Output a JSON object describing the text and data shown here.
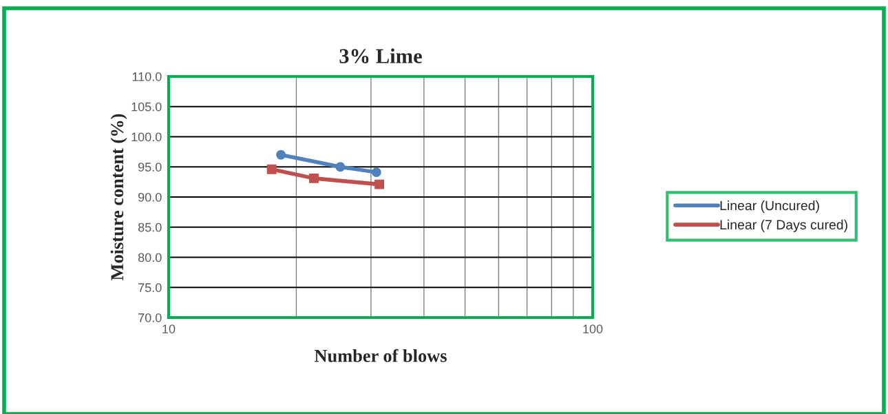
{
  "chart_data": {
    "type": "line",
    "title": "3% Lime",
    "xlabel": "Number of blows",
    "ylabel": "Moisture content (%)",
    "series": [
      {
        "name": "Linear (Uncured)",
        "color": "#4f81bd",
        "marker": "circle",
        "x": [
          18.4,
          25.4,
          30.9
        ],
        "values": [
          97.0,
          95.0,
          94.1
        ]
      },
      {
        "name": "Linear (7 Days cured)",
        "color": "#c0504d",
        "marker": "square",
        "x": [
          17.5,
          22.0,
          31.4
        ],
        "values": [
          94.6,
          93.1,
          92.1
        ]
      }
    ],
    "log": "x",
    "xlim": [
      10,
      100
    ],
    "xticks": [
      10,
      100
    ],
    "ylim": [
      70,
      110
    ],
    "yticks": [
      {
        "value": 70,
        "label": "70.0"
      },
      {
        "value": 75,
        "label": "75.0"
      },
      {
        "value": 80,
        "label": "80.0"
      },
      {
        "value": 85,
        "label": "85.0"
      },
      {
        "value": 90,
        "label": "90.0"
      },
      {
        "value": 95,
        "label": "95.0"
      },
      {
        "value": 100,
        "label": "100.0"
      },
      {
        "value": 105,
        "label": "105.0"
      },
      {
        "value": 110,
        "label": "110.0"
      }
    ],
    "grid": true,
    "legend": "right",
    "line_style": "solid"
  }
}
